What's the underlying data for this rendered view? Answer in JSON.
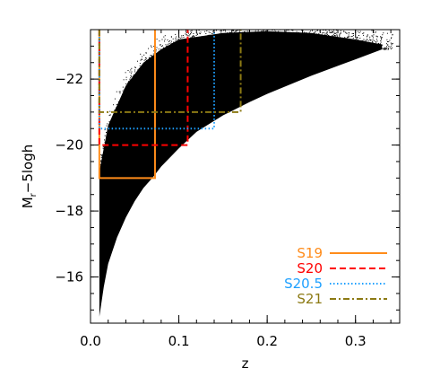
{
  "chart_data": {
    "type": "scatter",
    "xlabel": "z",
    "ylabel_main": "M",
    "ylabel_sub": "r",
    "ylabel_rest": "−5logh",
    "xlim": [
      0.0,
      0.35
    ],
    "ylim": [
      -14.6,
      -23.5
    ],
    "y_axis_inverted": true,
    "grid": false,
    "legend_placement": "bottom-right",
    "x_ticks": [
      0.0,
      0.1,
      0.2,
      0.3
    ],
    "x_tick_labels": [
      "0.0",
      "0.1",
      "0.2",
      "0.3"
    ],
    "x_minor_step": 0.02,
    "y_ticks": [
      -16,
      -18,
      -20,
      -22
    ],
    "y_tick_labels": [
      "−16",
      "−18",
      "−20",
      "−22"
    ],
    "y_minor_step": 0.5,
    "galaxy_cloud": {
      "color": "#000000",
      "z_min": 0.01,
      "z_max": 0.33,
      "lower_envelope": [
        {
          "z": 0.01,
          "mag": -14.8
        },
        {
          "z": 0.015,
          "mag": -15.7
        },
        {
          "z": 0.02,
          "mag": -16.4
        },
        {
          "z": 0.03,
          "mag": -17.2
        },
        {
          "z": 0.04,
          "mag": -17.8
        },
        {
          "z": 0.05,
          "mag": -18.3
        },
        {
          "z": 0.06,
          "mag": -18.7
        },
        {
          "z": 0.07,
          "mag": -19.0
        },
        {
          "z": 0.08,
          "mag": -19.35
        },
        {
          "z": 0.1,
          "mag": -19.9
        },
        {
          "z": 0.12,
          "mag": -20.4
        },
        {
          "z": 0.15,
          "mag": -20.9
        },
        {
          "z": 0.18,
          "mag": -21.3
        },
        {
          "z": 0.2,
          "mag": -21.55
        },
        {
          "z": 0.25,
          "mag": -22.1
        },
        {
          "z": 0.3,
          "mag": -22.6
        },
        {
          "z": 0.33,
          "mag": -22.9
        }
      ],
      "upper_envelope": [
        {
          "z": 0.01,
          "mag": -19.2
        },
        {
          "z": 0.02,
          "mag": -20.6
        },
        {
          "z": 0.04,
          "mag": -21.8
        },
        {
          "z": 0.06,
          "mag": -22.5
        },
        {
          "z": 0.08,
          "mag": -22.9
        },
        {
          "z": 0.1,
          "mag": -23.2
        },
        {
          "z": 0.15,
          "mag": -23.4
        },
        {
          "z": 0.2,
          "mag": -23.45
        },
        {
          "z": 0.25,
          "mag": -23.4
        },
        {
          "z": 0.3,
          "mag": -23.2
        },
        {
          "z": 0.33,
          "mag": -23.05
        }
      ]
    },
    "series": [
      {
        "name": "S19",
        "color": "#ff8c1a",
        "dash": "solid",
        "z_min": 0.01,
        "z_max": 0.073,
        "mag_limit": -19.0
      },
      {
        "name": "S20",
        "color": "#ff0000",
        "dash": "dashed",
        "z_min": 0.01,
        "z_max": 0.11,
        "mag_limit": -20.0
      },
      {
        "name": "S20.5",
        "color": "#1ea0ff",
        "dash": "dotted",
        "z_min": 0.01,
        "z_max": 0.14,
        "mag_limit": -20.5
      },
      {
        "name": "S21",
        "color": "#8c7a14",
        "dash": "dash-dot",
        "z_min": 0.01,
        "z_max": 0.17,
        "mag_limit": -21.0
      }
    ]
  }
}
